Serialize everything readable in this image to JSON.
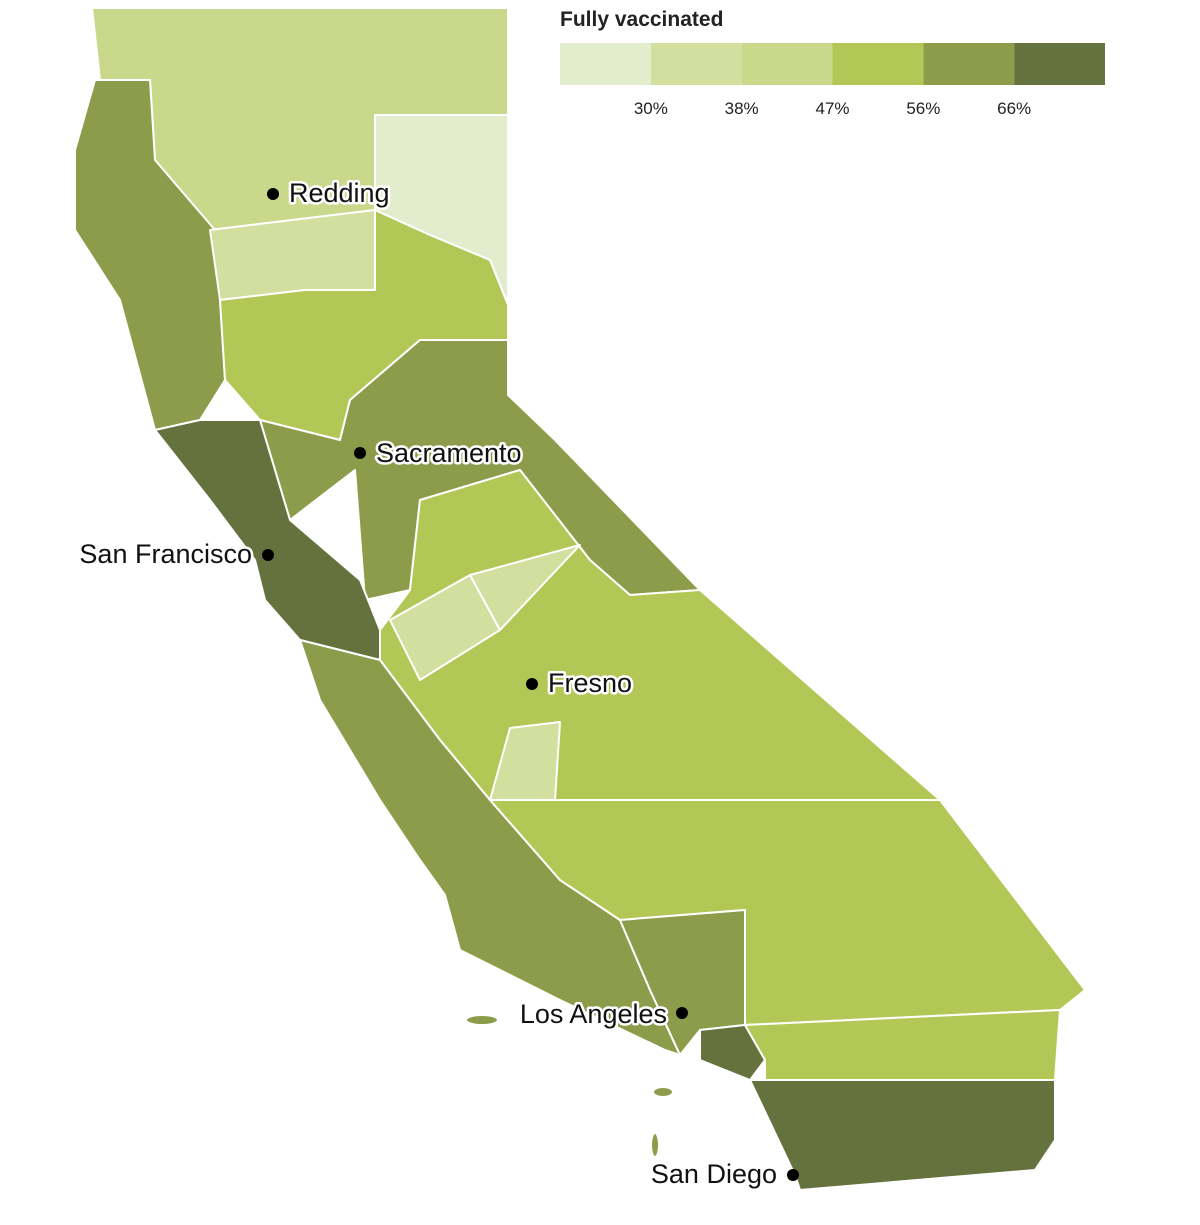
{
  "legend": {
    "title": "Fully vaccinated",
    "colors": [
      "#e3edce",
      "#d3df9f",
      "#c9d88a",
      "#b3c757",
      "#8d9c4a",
      "#66723d"
    ],
    "breaks": [
      "30%",
      "38%",
      "47%",
      "56%",
      "66%"
    ]
  },
  "cities": [
    "Redding",
    "Sacramento",
    "San Francisco",
    "Fresno",
    "Los Angeles",
    "San Diego"
  ]
}
